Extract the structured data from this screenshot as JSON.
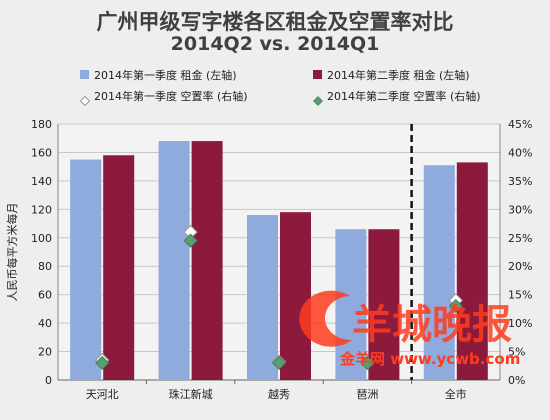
{
  "chart_data": {
    "type": "bar",
    "title": "广州甲级写字楼各区租金及空置率对比",
    "subtitle": "2014Q2 vs. 2014Q1",
    "categories": [
      "天河北",
      "珠江新城",
      "越秀",
      "琶洲",
      "全市"
    ],
    "series": [
      {
        "name": "2014年第一季度 租金 (左轴)",
        "kind": "bar",
        "axis": "left",
        "color": "#8faadc",
        "values": [
          155,
          168,
          116,
          106,
          151
        ]
      },
      {
        "name": "2014年第二季度 租金 (左轴)",
        "kind": "bar",
        "axis": "left",
        "color": "#8b1a3c",
        "values": [
          158,
          168,
          118,
          106,
          153
        ]
      },
      {
        "name": "2014年第一季度 空置率 (右轴)",
        "kind": "marker",
        "axis": "right",
        "marker": "hollow-diamond",
        "values": [
          3.5,
          26,
          3.2,
          3.0,
          14
        ]
      },
      {
        "name": "2014年第二季度 空置率 (右轴)",
        "kind": "marker",
        "axis": "right",
        "marker": "filled-diamond",
        "color": "#5a9e6f",
        "values": [
          3.0,
          24.5,
          3.0,
          3.0,
          13
        ]
      }
    ],
    "ylabel": "人民币每平方米每月",
    "ylim": [
      0,
      180
    ],
    "yticks": [
      0,
      20,
      40,
      60,
      80,
      100,
      120,
      140,
      160,
      180
    ],
    "y2lim": [
      0,
      45
    ],
    "y2ticks": [
      "0%",
      "5%",
      "10%",
      "15%",
      "20%",
      "25%",
      "30%",
      "35%",
      "40%",
      "45%"
    ],
    "divider": "dashed line between 琶洲 and 全市",
    "legend_position": "top",
    "grid": true
  },
  "watermark": {
    "logo_text": "羊城晚报",
    "caption": "金羊网 www.ycwb.com"
  }
}
